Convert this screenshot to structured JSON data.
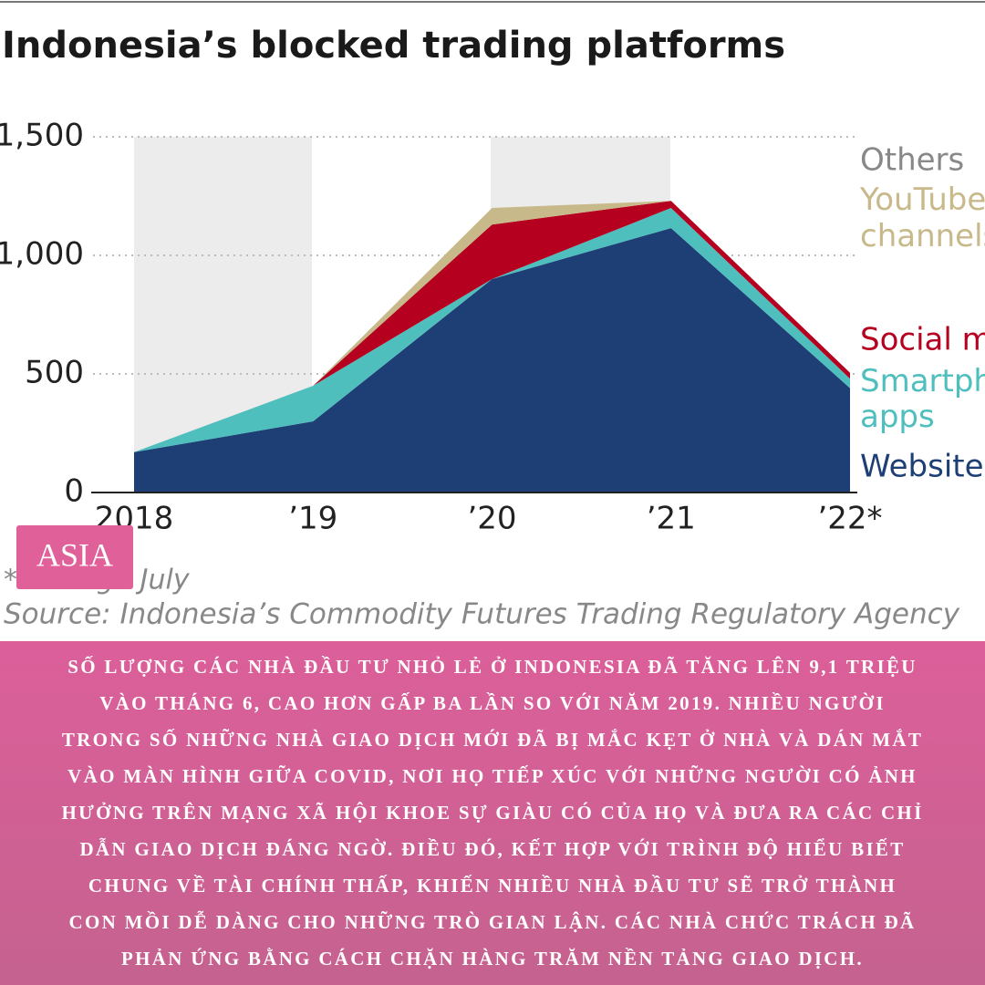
{
  "chart_data": {
    "type": "stacked-area",
    "title": "Indonesia’s blocked trading platforms",
    "categories": [
      "2018",
      "’19",
      "’20",
      "’21",
      "’22*"
    ],
    "series": [
      {
        "name": "Websites",
        "color": "#1d3f75",
        "values": [
          170,
          300,
          900,
          1115,
          440
        ]
      },
      {
        "name": "Smartphone apps",
        "color": "#4fbfbd",
        "values": [
          0,
          150,
          0,
          85,
          40
        ]
      },
      {
        "name": "Social media",
        "color": "#b5001f",
        "values": [
          0,
          0,
          230,
          30,
          25
        ]
      },
      {
        "name": "YouTube channels",
        "color": "#c8b98a",
        "values": [
          0,
          0,
          70,
          0,
          0
        ]
      },
      {
        "name": "Others",
        "color": "#9a9a9a",
        "values": [
          0,
          0,
          0,
          0,
          0
        ]
      }
    ],
    "ylim": [
      0,
      1500
    ],
    "yticks": [
      0,
      500,
      {
        "value": 1000,
        "label": "1,000"
      },
      {
        "value": 1500,
        "label": "1,500"
      }
    ],
    "grid": true,
    "footnote": "*Through July",
    "source": "Source: Indonesia’s Commodity Futures Trading Regulatory Agency"
  },
  "badge": "ASIA",
  "caption": [
    "SỐ LƯỢNG CÁC NHÀ ĐẦU TƯ NHỎ LẺ Ở INDONESIA ĐÃ TĂNG LÊN 9,1 TRIỆU",
    "VÀO THÁNG 6, CAO HƠN GẤP BA LẦN SO VỚI NĂM 2019. NHIỀU NGƯỜI",
    "TRONG SỐ NHỮNG NHÀ GIAO DỊCH MỚI ĐÃ BỊ MẮC KẸT Ở NHÀ VÀ DÁN MẮT",
    "VÀO MÀN HÌNH GIỮA COVID, NƠI HỌ TIẾP XÚC VỚI NHỮNG NGƯỜI CÓ ẢNH",
    "HƯỞNG TRÊN MẠNG XÃ HỘI KHOE SỰ GIÀU CÓ CỦA HỌ VÀ ĐƯA RA CÁC CHỈ",
    "DẪN GIAO DỊCH ĐÁNG NGỜ. ĐIỀU ĐÓ, KẾT HỢP VỚI TRÌNH ĐỘ HIỂU BIẾT",
    "CHUNG VỀ TÀI CHÍNH THẤP, KHIẾN NHIỀU NHÀ ĐẦU TƯ SẼ TRỞ THÀNH",
    "CON MỒI DỄ DÀNG CHO NHỮNG TRÒ GIAN LẬN. CÁC NHÀ CHỨC TRÁCH ĐÃ",
    "PHẢN ỨNG BẰNG CÁCH CHẶN HÀNG TRĂM NỀN TẢNG GIAO DỊCH."
  ]
}
